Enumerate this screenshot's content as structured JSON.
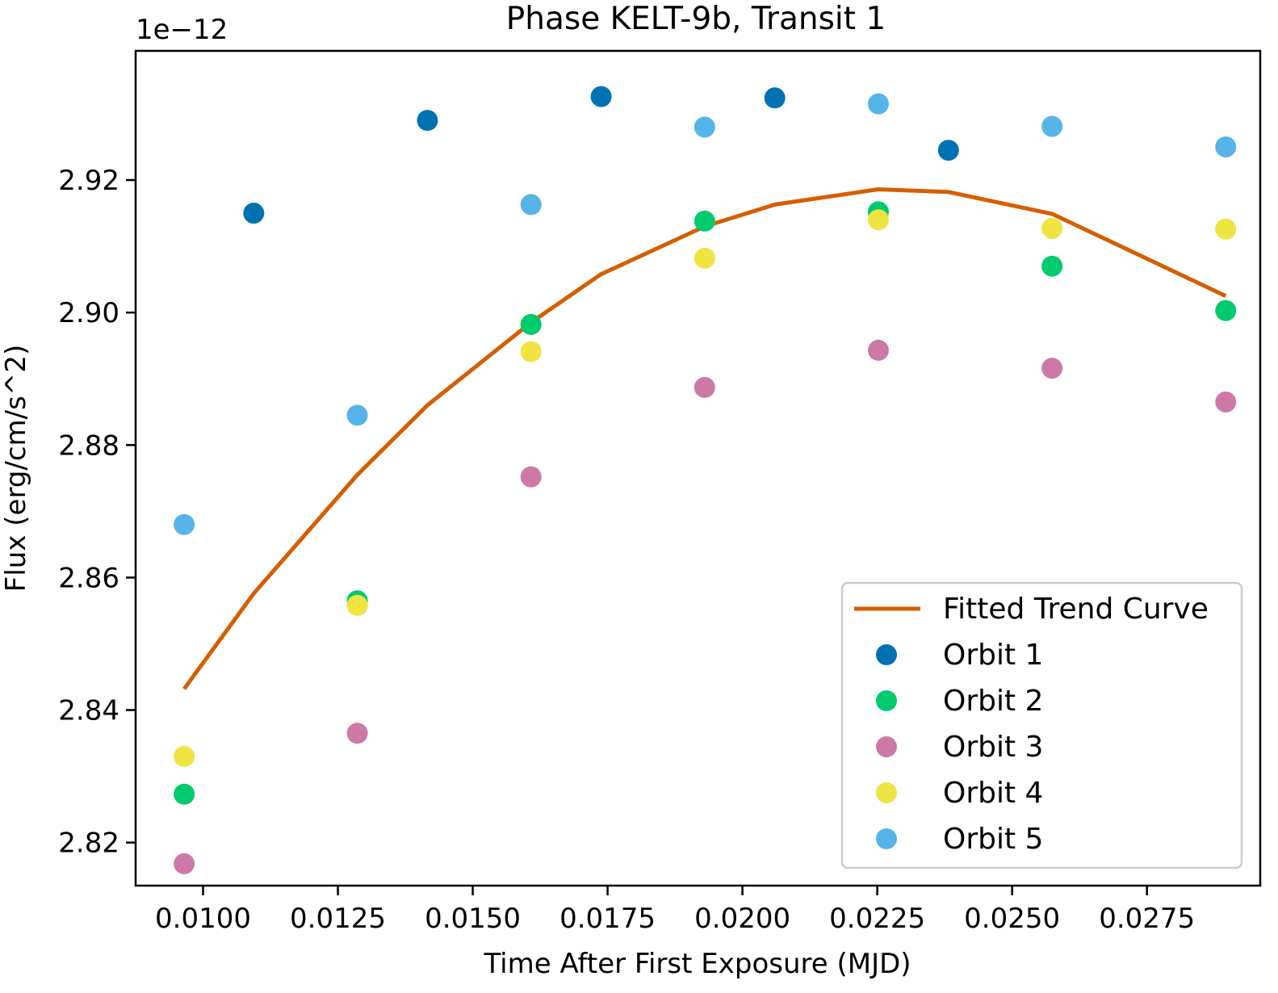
{
  "chart_data": {
    "type": "scatter",
    "title": "Phase KELT-9b, Transit 1",
    "xlabel": "Time After First Exposure (MJD)",
    "ylabel": "Flux (erg/cm/s^2)",
    "y_offset_label": "1e−12",
    "xlim": [
      0.00875,
      0.0296
    ],
    "ylim": [
      2.8135,
      2.9395
    ],
    "x_ticks": [
      0.01,
      0.0125,
      0.015,
      0.0175,
      0.02,
      0.0225,
      0.025,
      0.0275
    ],
    "x_tick_labels": [
      "0.0100",
      "0.0125",
      "0.0150",
      "0.0175",
      "0.0200",
      "0.0225",
      "0.0250",
      "0.0275"
    ],
    "y_ticks": [
      2.82,
      2.84,
      2.86,
      2.88,
      2.9,
      2.92
    ],
    "y_tick_labels": [
      "2.82",
      "2.84",
      "2.86",
      "2.88",
      "2.90",
      "2.92"
    ],
    "legend_position": "lower-right",
    "trend": {
      "name": "Fitted Trend Curve",
      "color": "#d55e00",
      "x": [
        0.00965,
        0.01094,
        0.01286,
        0.01416,
        0.01608,
        0.01738,
        0.0193,
        0.0206,
        0.02252,
        0.02382,
        0.02574,
        0.02896
      ],
      "y": [
        2.8432,
        2.8576,
        2.8755,
        2.886,
        2.8985,
        2.9058,
        2.913,
        2.9163,
        2.9186,
        2.9182,
        2.9149,
        2.9025
      ]
    },
    "series": [
      {
        "name": "Orbit 1",
        "color": "#0072b2",
        "x": [
          0.01094,
          0.01416,
          0.01738,
          0.0206,
          0.02382
        ],
        "y": [
          2.915,
          2.929,
          2.9326,
          2.9324,
          2.9245
        ]
      },
      {
        "name": "Orbit 2",
        "color": "#00cc6e",
        "x": [
          0.00965,
          0.01286,
          0.01608,
          0.0193,
          0.02252,
          0.02574,
          0.02896
        ],
        "y": [
          2.8273,
          2.8565,
          2.8982,
          2.9138,
          2.9152,
          2.907,
          2.9003
        ]
      },
      {
        "name": "Orbit 3",
        "color": "#cc79a7",
        "x": [
          0.00965,
          0.01286,
          0.01608,
          0.0193,
          0.02252,
          0.02574,
          0.02896
        ],
        "y": [
          2.8168,
          2.8365,
          2.8752,
          2.8887,
          2.8943,
          2.8916,
          2.8865
        ]
      },
      {
        "name": "Orbit 4",
        "color": "#f0e442",
        "x": [
          0.00965,
          0.01286,
          0.01608,
          0.0193,
          0.02252,
          0.02574,
          0.02896
        ],
        "y": [
          2.833,
          2.8558,
          2.8941,
          2.9082,
          2.914,
          2.9127,
          2.9126
        ]
      },
      {
        "name": "Orbit 5",
        "color": "#56b4e9",
        "x": [
          0.00965,
          0.01286,
          0.01608,
          0.0193,
          0.02252,
          0.02574,
          0.02896
        ],
        "y": [
          2.868,
          2.8845,
          2.9163,
          2.928,
          2.9315,
          2.9281,
          2.925
        ]
      }
    ]
  }
}
